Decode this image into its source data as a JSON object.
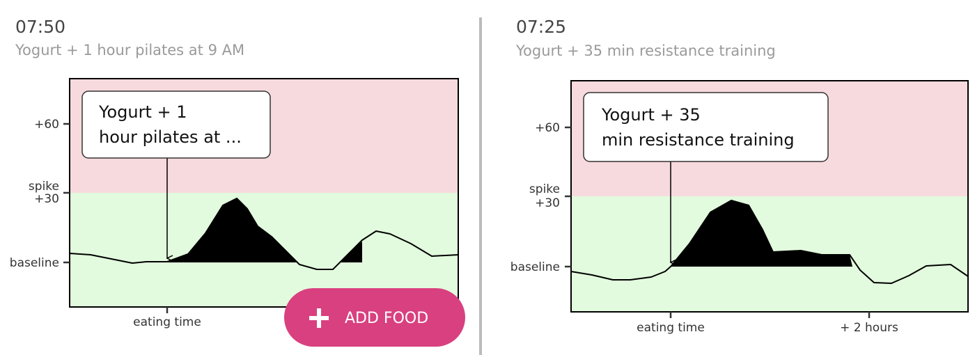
{
  "panels": [
    {
      "time": "07:50",
      "subtitle": "Yogurt + 1 hour pilates at 9 AM",
      "callout": [
        "Yogurt + 1",
        "hour pilates at ..."
      ],
      "y_labels": [
        "+60",
        "spike",
        "+30",
        "baseline"
      ],
      "x_labels": [
        "eating time"
      ]
    },
    {
      "time": "07:25",
      "subtitle": "Yogurt + 35 min resistance training",
      "callout": [
        "Yogurt + 35",
        "min resistance training"
      ],
      "y_labels": [
        "+60",
        "spike",
        "+30",
        "baseline"
      ],
      "x_labels": [
        "eating time",
        "+ 2 hours"
      ]
    }
  ],
  "button": {
    "label": "ADD FOOD"
  }
}
